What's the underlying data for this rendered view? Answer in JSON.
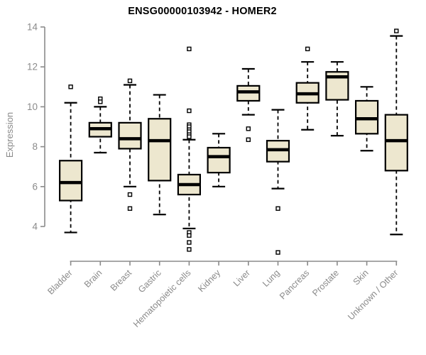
{
  "chart_data": {
    "type": "boxplot",
    "title": "ENSG00000103942 - HOMER2",
    "ylabel": "Expression",
    "xlabel": "",
    "ylim": [
      4,
      14
    ],
    "yticks": [
      4,
      6,
      8,
      10,
      12,
      14
    ],
    "grid": false,
    "legend": false,
    "categories": [
      "Bladder",
      "Brain",
      "Breast",
      "Gastric",
      "Hematopoietic cells",
      "Kidney",
      "Liver",
      "Lung",
      "Pancreas",
      "Prostate",
      "Skin",
      "Unknown / Other"
    ],
    "series": [
      {
        "category": "Bladder",
        "whisker_low": 3.7,
        "q1": 5.3,
        "median": 6.2,
        "q3": 7.3,
        "whisker_high": 10.2,
        "outliers": [
          11.0
        ]
      },
      {
        "category": "Brain",
        "whisker_low": 7.7,
        "q1": 8.5,
        "median": 8.9,
        "q3": 9.2,
        "whisker_high": 10.0,
        "outliers": [
          10.4,
          10.25
        ]
      },
      {
        "category": "Breast",
        "whisker_low": 6.0,
        "q1": 7.9,
        "median": 8.4,
        "q3": 9.2,
        "whisker_high": 11.1,
        "outliers": [
          11.3,
          5.6,
          4.9
        ]
      },
      {
        "category": "Gastric",
        "whisker_low": 4.6,
        "q1": 6.3,
        "median": 8.3,
        "q3": 9.4,
        "whisker_high": 10.6,
        "outliers": []
      },
      {
        "category": "Hematopoietic cells",
        "whisker_low": 3.9,
        "q1": 5.6,
        "median": 6.1,
        "q3": 6.6,
        "whisker_high": 8.35,
        "outliers": [
          12.9,
          9.8,
          9.1,
          9.0,
          8.85,
          8.75,
          8.6,
          8.5,
          3.7,
          3.55,
          3.2,
          2.85
        ]
      },
      {
        "category": "Kidney",
        "whisker_low": 6.0,
        "q1": 6.7,
        "median": 7.5,
        "q3": 7.95,
        "whisker_high": 8.65,
        "outliers": []
      },
      {
        "category": "Liver",
        "whisker_low": 9.6,
        "q1": 10.3,
        "median": 10.75,
        "q3": 11.05,
        "whisker_high": 11.9,
        "outliers": [
          8.9,
          8.35
        ]
      },
      {
        "category": "Lung",
        "whisker_low": 5.9,
        "q1": 7.25,
        "median": 7.85,
        "q3": 8.3,
        "whisker_high": 9.85,
        "outliers": [
          4.9,
          2.7
        ]
      },
      {
        "category": "Pancreas",
        "whisker_low": 8.85,
        "q1": 10.2,
        "median": 10.65,
        "q3": 11.2,
        "whisker_high": 12.25,
        "outliers": [
          12.9
        ]
      },
      {
        "category": "Prostate",
        "whisker_low": 8.55,
        "q1": 10.35,
        "median": 11.5,
        "q3": 11.75,
        "whisker_high": 12.25,
        "outliers": []
      },
      {
        "category": "Skin",
        "whisker_low": 7.8,
        "q1": 8.65,
        "median": 9.4,
        "q3": 10.3,
        "whisker_high": 11.0,
        "outliers": []
      },
      {
        "category": "Unknown / Other",
        "whisker_low": 3.6,
        "q1": 6.8,
        "median": 8.3,
        "q3": 9.6,
        "whisker_high": 13.55,
        "outliers": [
          13.8
        ]
      }
    ],
    "colors": {
      "box_fill": "#EDE7CF",
      "box_line": "#000000",
      "outlier_fill": "#FFFFFF",
      "axis": "#8a8a8a",
      "tick_label": "#8a8a8a",
      "title": "#000000",
      "background": "#FFFFFF"
    }
  }
}
